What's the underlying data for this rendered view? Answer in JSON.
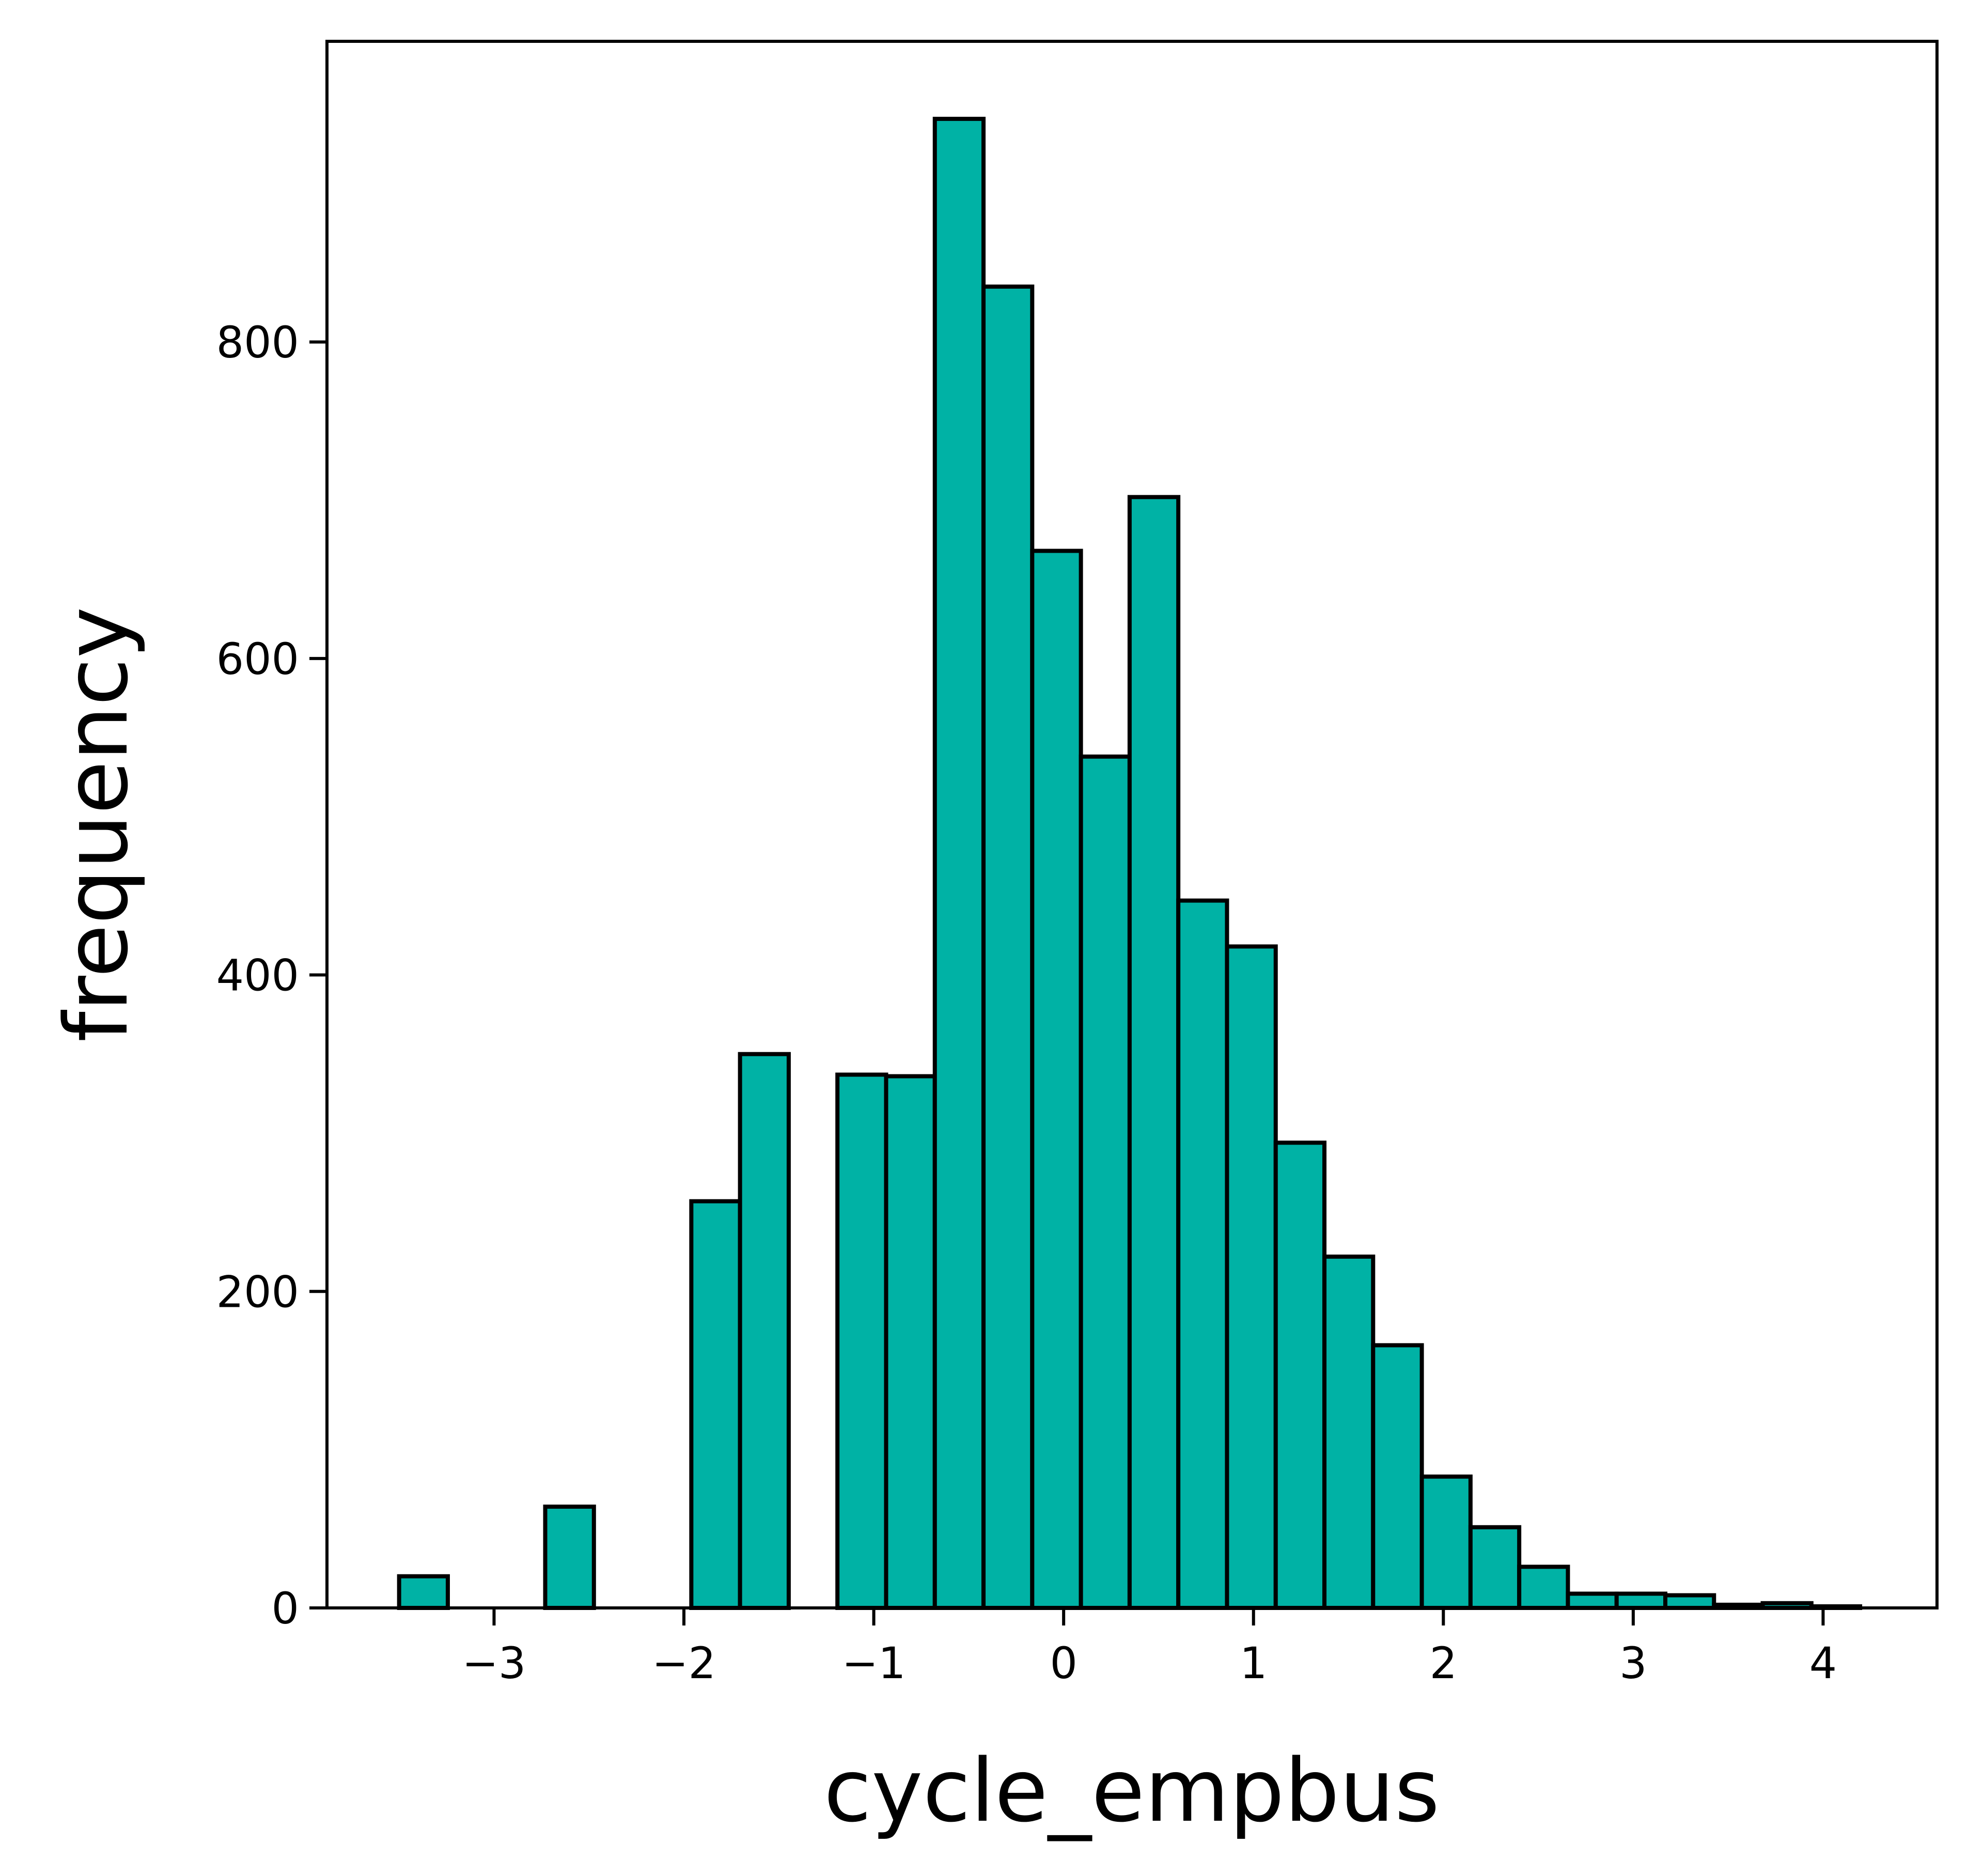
{
  "chart_data": {
    "type": "bar",
    "title": "",
    "xlabel": "cycle_empbus",
    "ylabel": "frequency",
    "bar_color": "#00b2a5",
    "edge_color": "#000000",
    "xlim": [
      -3.88,
      4.6
    ],
    "ylim": [
      0,
      990
    ],
    "x_ticks": [
      {
        "value": -3,
        "label": "−3"
      },
      {
        "value": -2,
        "label": "−2"
      },
      {
        "value": -1,
        "label": "−1"
      },
      {
        "value": 0,
        "label": "0"
      },
      {
        "value": 1,
        "label": "1"
      },
      {
        "value": 2,
        "label": "2"
      },
      {
        "value": 3,
        "label": "3"
      },
      {
        "value": 4,
        "label": "4"
      }
    ],
    "y_ticks": [
      {
        "value": 0,
        "label": "0"
      },
      {
        "value": 200,
        "label": "200"
      },
      {
        "value": 400,
        "label": "400"
      },
      {
        "value": 600,
        "label": "600"
      },
      {
        "value": 800,
        "label": "800"
      }
    ],
    "bin_width": 0.2565,
    "bins": [
      {
        "start": -3.5,
        "count": 20
      },
      {
        "start": -3.2435,
        "count": 0
      },
      {
        "start": -2.987,
        "count": 0
      },
      {
        "start": -2.7305,
        "count": 64
      },
      {
        "start": -2.474,
        "count": 0
      },
      {
        "start": -2.2175,
        "count": 0
      },
      {
        "start": -1.961,
        "count": 257
      },
      {
        "start": -1.7045,
        "count": 350
      },
      {
        "start": -1.448,
        "count": 0
      },
      {
        "start": -1.1915,
        "count": 337
      },
      {
        "start": -0.935,
        "count": 336
      },
      {
        "start": -0.6785,
        "count": 941
      },
      {
        "start": -0.422,
        "count": 835
      },
      {
        "start": -0.1655,
        "count": 668
      },
      {
        "start": 0.091,
        "count": 538
      },
      {
        "start": 0.3475,
        "count": 702
      },
      {
        "start": 0.604,
        "count": 447
      },
      {
        "start": 0.8605,
        "count": 418
      },
      {
        "start": 1.117,
        "count": 294
      },
      {
        "start": 1.3735,
        "count": 222
      },
      {
        "start": 1.63,
        "count": 166
      },
      {
        "start": 1.8865,
        "count": 83
      },
      {
        "start": 2.143,
        "count": 51
      },
      {
        "start": 2.3995,
        "count": 26
      },
      {
        "start": 2.656,
        "count": 9
      },
      {
        "start": 2.9125,
        "count": 9
      },
      {
        "start": 3.169,
        "count": 8
      },
      {
        "start": 3.4255,
        "count": 2
      },
      {
        "start": 3.682,
        "count": 3
      },
      {
        "start": 3.9385,
        "count": 1
      }
    ]
  }
}
